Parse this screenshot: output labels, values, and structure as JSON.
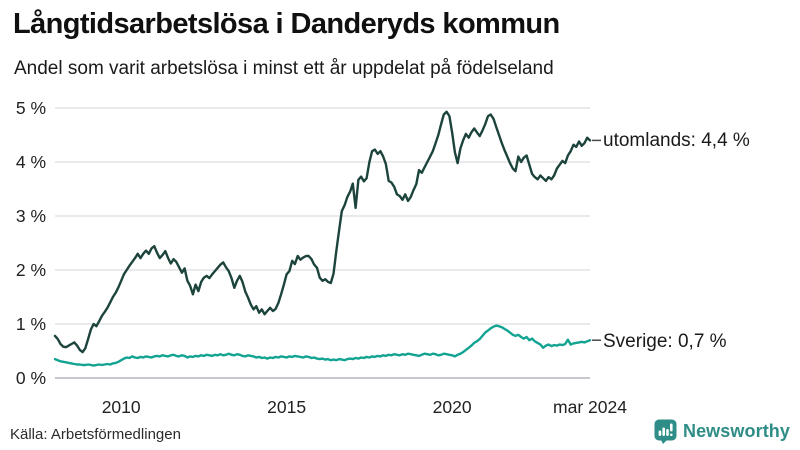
{
  "header": {
    "title": "Långtidsarbetslösa i Danderyds kommun",
    "subtitle": "Andel som varit arbetslösa i minst ett år uppdelat på födelseland"
  },
  "footer": {
    "source": "Källa: Arbetsförmedlingen",
    "brand": "Newsworthy"
  },
  "colors": {
    "utomlands_line": "#1c443c",
    "sverige_line": "#12a392",
    "gridline": "#dddde3",
    "axis": "#b4b4bc",
    "tick_text": "#222222",
    "connector": "#4a4a4a",
    "brand_teal": "#2e8d86"
  },
  "chart_data": {
    "type": "line",
    "title": "Långtidsarbetslösa i Danderyds kommun",
    "subtitle": "Andel som varit arbetslösa i minst ett år uppdelat på födelseland",
    "unit": "%",
    "frequency": "monthly",
    "x_start": "2008-01",
    "x_end": "2024-03",
    "ylim": [
      0,
      5
    ],
    "grid": "horizontal",
    "legend_position": "line-end-labels",
    "yticks": [
      {
        "value": 0,
        "label": "0 %"
      },
      {
        "value": 1,
        "label": "1 %"
      },
      {
        "value": 2,
        "label": "2 %"
      },
      {
        "value": 3,
        "label": "3 %"
      },
      {
        "value": 4,
        "label": "4 %"
      },
      {
        "value": 5,
        "label": "5 %"
      }
    ],
    "xticks": [
      {
        "label": "2010",
        "month_index": 24
      },
      {
        "label": "2015",
        "month_index": 84
      },
      {
        "label": "2020",
        "month_index": 144
      },
      {
        "label": "mar 2024",
        "month_index": 194
      }
    ],
    "series": [
      {
        "name": "utomlands",
        "end_label": "utomlands: 4,4 %",
        "end_value": 4.4,
        "color": "#1c443c",
        "values": [
          0.78,
          0.72,
          0.63,
          0.58,
          0.57,
          0.6,
          0.63,
          0.66,
          0.6,
          0.52,
          0.48,
          0.55,
          0.72,
          0.9,
          1.0,
          0.96,
          1.05,
          1.15,
          1.22,
          1.3,
          1.4,
          1.5,
          1.58,
          1.68,
          1.8,
          1.92,
          2.0,
          2.08,
          2.15,
          2.22,
          2.3,
          2.22,
          2.3,
          2.36,
          2.3,
          2.4,
          2.44,
          2.32,
          2.22,
          2.28,
          2.35,
          2.22,
          2.12,
          2.2,
          2.15,
          2.05,
          1.95,
          2.03,
          1.8,
          1.71,
          1.55,
          1.73,
          1.61,
          1.78,
          1.86,
          1.89,
          1.85,
          1.92,
          1.98,
          2.04,
          2.1,
          2.14,
          2.05,
          1.98,
          1.85,
          1.67,
          1.8,
          1.89,
          1.78,
          1.6,
          1.49,
          1.36,
          1.27,
          1.33,
          1.21,
          1.27,
          1.18,
          1.24,
          1.3,
          1.24,
          1.28,
          1.39,
          1.55,
          1.73,
          1.92,
          1.98,
          2.17,
          2.11,
          2.26,
          2.19,
          2.23,
          2.26,
          2.26,
          2.2,
          2.1,
          2.04,
          1.86,
          1.8,
          1.83,
          1.78,
          1.76,
          1.93,
          2.35,
          2.72,
          3.09,
          3.2,
          3.35,
          3.45,
          3.6,
          3.15,
          3.67,
          3.73,
          3.64,
          3.7,
          4.0,
          4.2,
          4.23,
          4.15,
          4.2,
          4.1,
          3.96,
          3.65,
          3.62,
          3.54,
          3.4,
          3.37,
          3.3,
          3.4,
          3.28,
          3.35,
          3.48,
          3.59,
          3.85,
          3.8,
          3.9,
          4.0,
          4.1,
          4.2,
          4.35,
          4.5,
          4.7,
          4.88,
          4.93,
          4.85,
          4.55,
          4.18,
          3.98,
          4.25,
          4.4,
          4.52,
          4.45,
          4.55,
          4.62,
          4.55,
          4.48,
          4.58,
          4.7,
          4.85,
          4.88,
          4.8,
          4.65,
          4.5,
          4.35,
          4.22,
          4.1,
          3.98,
          3.88,
          3.83,
          4.1,
          4.0,
          4.08,
          4.12,
          3.95,
          3.78,
          3.72,
          3.68,
          3.75,
          3.7,
          3.65,
          3.72,
          3.68,
          3.75,
          3.88,
          3.95,
          4.02,
          3.98,
          4.12,
          4.2,
          4.32,
          4.28,
          4.38,
          4.3,
          4.35,
          4.45,
          4.4
        ]
      },
      {
        "name": "Sverige",
        "end_label": "Sverige: 0,7 %",
        "end_value": 0.7,
        "color": "#12a392",
        "values": [
          0.35,
          0.33,
          0.31,
          0.3,
          0.29,
          0.28,
          0.27,
          0.26,
          0.25,
          0.25,
          0.24,
          0.24,
          0.25,
          0.24,
          0.23,
          0.24,
          0.25,
          0.24,
          0.25,
          0.26,
          0.25,
          0.27,
          0.28,
          0.3,
          0.33,
          0.36,
          0.38,
          0.37,
          0.4,
          0.38,
          0.37,
          0.39,
          0.38,
          0.4,
          0.39,
          0.38,
          0.4,
          0.41,
          0.4,
          0.42,
          0.41,
          0.4,
          0.42,
          0.43,
          0.41,
          0.4,
          0.42,
          0.41,
          0.38,
          0.4,
          0.39,
          0.41,
          0.4,
          0.42,
          0.41,
          0.43,
          0.42,
          0.41,
          0.43,
          0.42,
          0.44,
          0.42,
          0.43,
          0.45,
          0.43,
          0.42,
          0.44,
          0.43,
          0.41,
          0.4,
          0.42,
          0.41,
          0.4,
          0.38,
          0.39,
          0.37,
          0.38,
          0.36,
          0.38,
          0.37,
          0.39,
          0.38,
          0.4,
          0.39,
          0.38,
          0.4,
          0.39,
          0.41,
          0.4,
          0.39,
          0.38,
          0.4,
          0.39,
          0.37,
          0.38,
          0.36,
          0.35,
          0.36,
          0.34,
          0.35,
          0.33,
          0.34,
          0.33,
          0.35,
          0.34,
          0.33,
          0.35,
          0.36,
          0.35,
          0.37,
          0.36,
          0.38,
          0.37,
          0.39,
          0.38,
          0.4,
          0.39,
          0.41,
          0.4,
          0.42,
          0.41,
          0.43,
          0.42,
          0.44,
          0.43,
          0.42,
          0.44,
          0.43,
          0.45,
          0.44,
          0.43,
          0.42,
          0.41,
          0.43,
          0.45,
          0.44,
          0.43,
          0.45,
          0.44,
          0.42,
          0.43,
          0.45,
          0.44,
          0.43,
          0.42,
          0.4,
          0.43,
          0.45,
          0.48,
          0.52,
          0.56,
          0.6,
          0.65,
          0.68,
          0.72,
          0.78,
          0.84,
          0.88,
          0.92,
          0.95,
          0.97,
          0.96,
          0.94,
          0.91,
          0.88,
          0.84,
          0.8,
          0.78,
          0.8,
          0.76,
          0.73,
          0.76,
          0.7,
          0.73,
          0.68,
          0.65,
          0.62,
          0.56,
          0.6,
          0.62,
          0.59,
          0.61,
          0.6,
          0.62,
          0.61,
          0.63,
          0.71,
          0.62,
          0.64,
          0.65,
          0.66,
          0.67,
          0.66,
          0.68,
          0.7
        ]
      }
    ]
  }
}
